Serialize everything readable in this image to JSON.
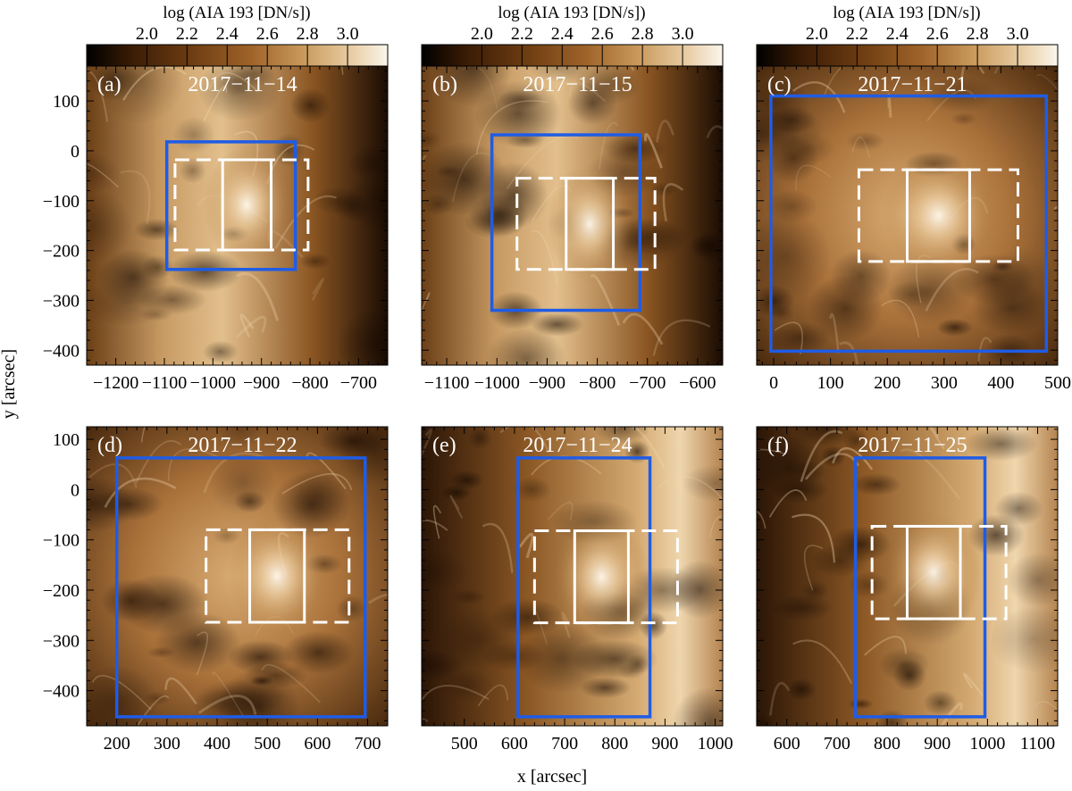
{
  "colors": {
    "box_large": "#1f5ce6",
    "box_inner": "#ffffff",
    "colormap": [
      "#000000",
      "#3a1c05",
      "#6e3d12",
      "#a0642a",
      "#c99a5c",
      "#e8cda4",
      "#fbf5ec"
    ]
  },
  "figure": {
    "ylabel": "y [arcsec]",
    "xlabel": "x [arcsec]"
  },
  "colorbar": {
    "title": "log (AIA 193 [DN/s])",
    "range": [
      1.7,
      3.2
    ],
    "ticks": [
      "2.0",
      "2.2",
      "2.4",
      "2.6",
      "2.8",
      "3.0"
    ]
  },
  "chart_data": [
    {
      "type": "heatmap",
      "panel": "(a)",
      "date": "2017−11−14",
      "xlim": [
        -1260,
        -640
      ],
      "ylim": [
        -430,
        170
      ],
      "xticks": [
        "−1200",
        "−1100",
        "−1000",
        "−900",
        "−800",
        "−700"
      ],
      "xtick_values": [
        -1200,
        -1100,
        -1000,
        -900,
        -800,
        -700
      ],
      "yticks": [
        "100",
        "0",
        "−100",
        "−200",
        "−300",
        "−400"
      ],
      "ytick_values": [
        100,
        0,
        -100,
        -200,
        -300,
        -400
      ],
      "show_xticks": true,
      "show_yticks": true,
      "limb": "left",
      "boxes": {
        "blue": [
          -1095,
          18,
          -830,
          -238
        ],
        "dashed": [
          -1078,
          -18,
          -804,
          -199
        ],
        "solid": [
          -980,
          -18,
          -880,
          -199
        ]
      }
    },
    {
      "type": "heatmap",
      "panel": "(b)",
      "date": "2017−11−15",
      "xlim": [
        -1150,
        -550
      ],
      "ylim": [
        -430,
        170
      ],
      "xticks": [
        "−1100",
        "−1000",
        "−900",
        "−800",
        "−700",
        "−600"
      ],
      "xtick_values": [
        -1100,
        -1000,
        -900,
        -800,
        -700,
        -600
      ],
      "show_xticks": true,
      "show_yticks": false,
      "limb": "left",
      "boxes": {
        "blue": [
          -1010,
          32,
          -715,
          -320
        ],
        "dashed": [
          -960,
          -55,
          -685,
          -238
        ],
        "solid": [
          -862,
          -55,
          -768,
          -238
        ]
      }
    },
    {
      "type": "heatmap",
      "panel": "(c)",
      "date": "2017−11−21",
      "xlim": [
        -30,
        500
      ],
      "ylim": [
        -430,
        170
      ],
      "xticks": [
        "0",
        "100",
        "200",
        "300",
        "400",
        "500"
      ],
      "xtick_values": [
        0,
        100,
        200,
        300,
        400,
        500
      ],
      "show_xticks": true,
      "show_yticks": false,
      "limb": "none",
      "boxes": {
        "blue": [
          -5,
          110,
          480,
          -402
        ],
        "dashed": [
          150,
          -38,
          430,
          -222
        ],
        "solid": [
          235,
          -38,
          345,
          -222
        ]
      }
    },
    {
      "type": "heatmap",
      "panel": "(d)",
      "date": "2017−11−22",
      "xlim": [
        140,
        740
      ],
      "ylim": [
        -470,
        125
      ],
      "xticks": [
        "200",
        "300",
        "400",
        "500",
        "600",
        "700"
      ],
      "xtick_values": [
        200,
        300,
        400,
        500,
        600,
        700
      ],
      "yticks": [
        "100",
        "0",
        "−100",
        "−200",
        "−300",
        "−400"
      ],
      "ytick_values": [
        100,
        0,
        -100,
        -200,
        -300,
        -400
      ],
      "show_xticks": true,
      "show_yticks": true,
      "limb": "none",
      "boxes": {
        "blue": [
          200,
          63,
          695,
          -452
        ],
        "dashed": [
          378,
          -80,
          663,
          -264
        ],
        "solid": [
          465,
          -80,
          574,
          -264
        ]
      }
    },
    {
      "type": "heatmap",
      "panel": "(e)",
      "date": "2017−11−24",
      "xlim": [
        415,
        1015
      ],
      "ylim": [
        -470,
        125
      ],
      "xticks": [
        "500",
        "600",
        "700",
        "800",
        "900",
        "1000"
      ],
      "xtick_values": [
        500,
        600,
        700,
        800,
        900,
        1000
      ],
      "show_xticks": true,
      "show_yticks": false,
      "limb": "right",
      "boxes": {
        "blue": [
          607,
          63,
          870,
          -452
        ],
        "dashed": [
          640,
          -82,
          925,
          -265
        ],
        "solid": [
          720,
          -82,
          827,
          -265
        ]
      }
    },
    {
      "type": "heatmap",
      "panel": "(f)",
      "date": "2017−11−25",
      "xlim": [
        540,
        1140
      ],
      "ylim": [
        -470,
        125
      ],
      "xticks": [
        "600",
        "700",
        "800",
        "900",
        "1000",
        "1100"
      ],
      "xtick_values": [
        600,
        700,
        800,
        900,
        1000,
        1100
      ],
      "show_xticks": true,
      "show_yticks": false,
      "limb": "right",
      "boxes": {
        "blue": [
          737,
          63,
          995,
          -452
        ],
        "dashed": [
          770,
          -73,
          1037,
          -257
        ],
        "solid": [
          840,
          -73,
          946,
          -257
        ]
      }
    }
  ]
}
